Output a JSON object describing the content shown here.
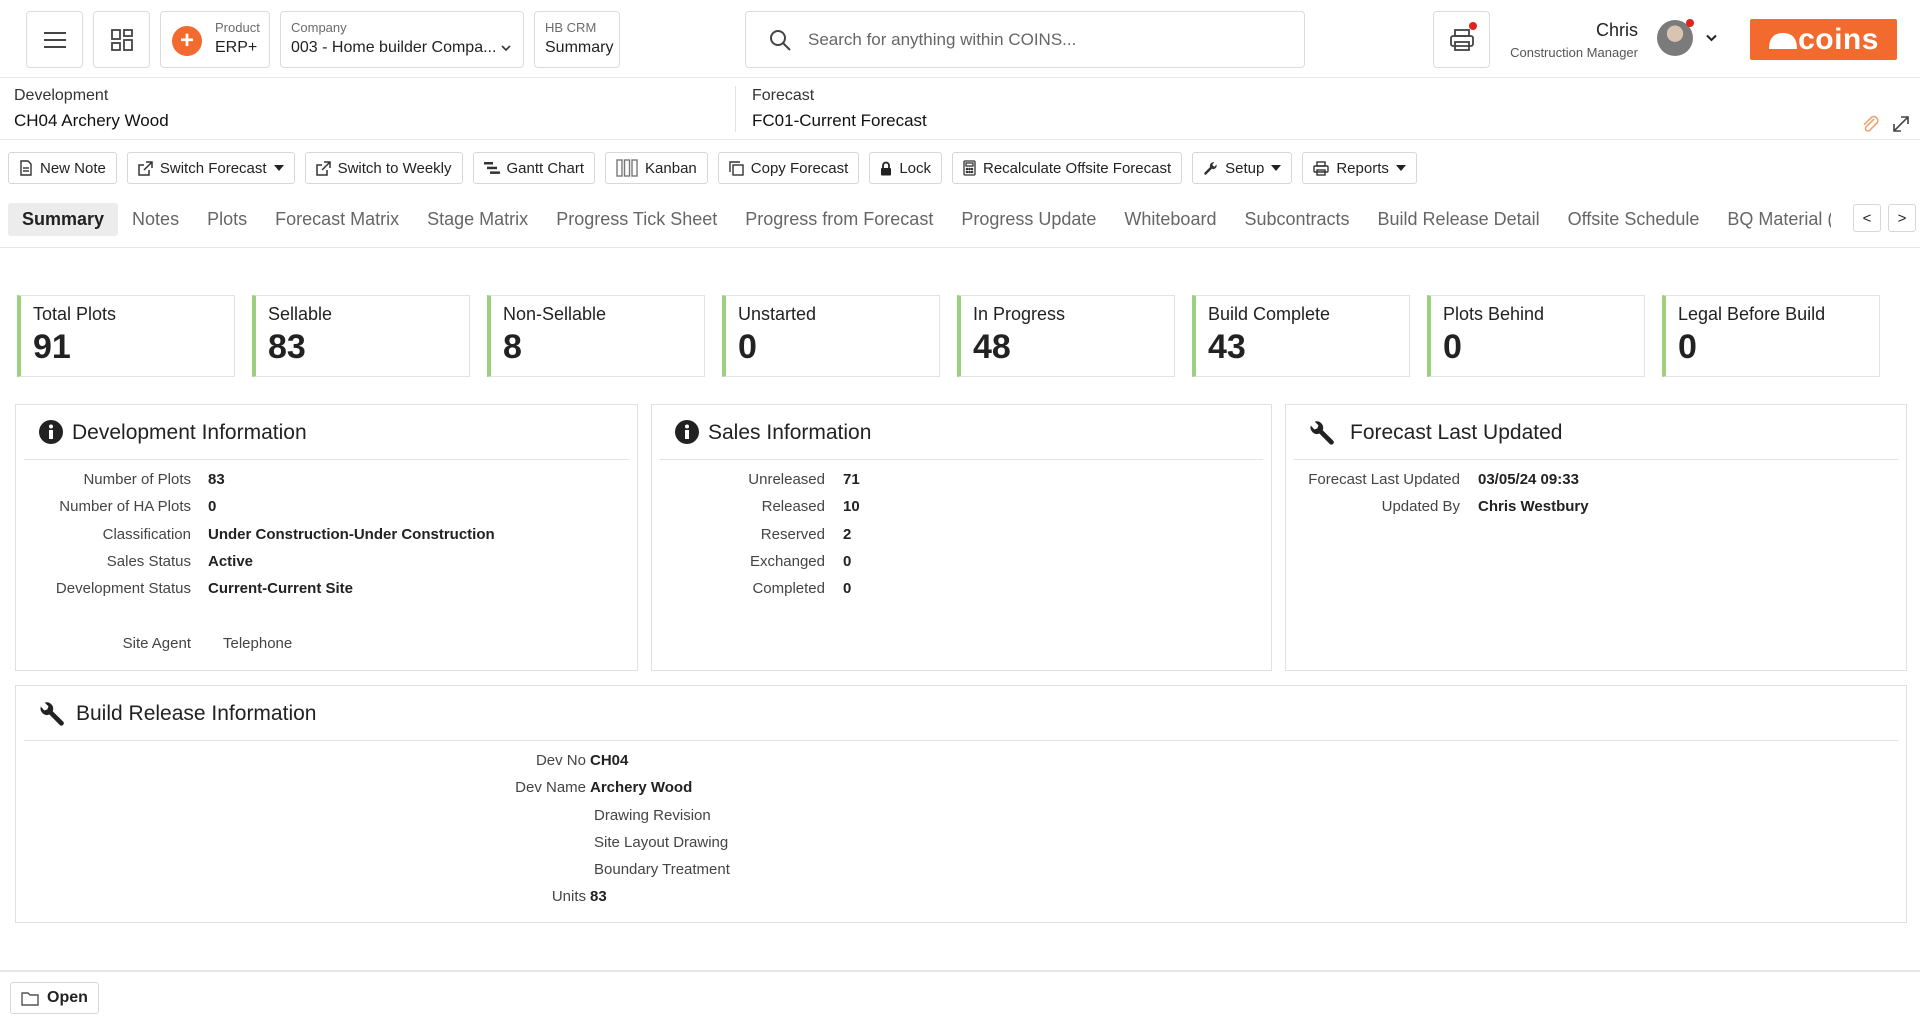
{
  "header": {
    "product_label": "Product",
    "product_value": "ERP+",
    "company_label": "Company",
    "company_value": "003 - Home builder Compa...",
    "crm_label": "HB CRM",
    "crm_value": "Summary",
    "search_placeholder": "Search for anything within COINS...",
    "user_name": "Chris",
    "user_role": "Construction Manager",
    "logo_text": "coins",
    "accent_color": "#f26a2e"
  },
  "context": {
    "development_label": "Development",
    "development_value": "CH04 Archery Wood",
    "forecast_label": "Forecast",
    "forecast_value": "FC01-Current Forecast"
  },
  "toolbar": {
    "new_note": "New Note",
    "switch_forecast": "Switch Forecast",
    "switch_weekly": "Switch to Weekly",
    "gantt": "Gantt Chart",
    "kanban": "Kanban",
    "copy_forecast": "Copy Forecast",
    "lock": "Lock",
    "recalculate": "Recalculate Offsite Forecast",
    "setup": "Setup",
    "reports": "Reports"
  },
  "tabs": [
    "Summary",
    "Notes",
    "Plots",
    "Forecast Matrix",
    "Stage Matrix",
    "Progress Tick Sheet",
    "Progress from Forecast",
    "Progress Update",
    "Whiteboard",
    "Subcontracts",
    "Build Release Detail",
    "Offsite Schedule",
    "BQ Material ("
  ],
  "tab_nav": {
    "prev": "<",
    "next": ">"
  },
  "stats": [
    {
      "label": "Total Plots",
      "value": "91"
    },
    {
      "label": "Sellable",
      "value": "83"
    },
    {
      "label": "Non-Sellable",
      "value": "8"
    },
    {
      "label": "Unstarted",
      "value": "0"
    },
    {
      "label": "In Progress",
      "value": "48"
    },
    {
      "label": "Build Complete",
      "value": "43"
    },
    {
      "label": "Plots Behind",
      "value": "0"
    },
    {
      "label": "Legal Before Build",
      "value": "0"
    }
  ],
  "stat_accent": "#9ccf7f",
  "development_info": {
    "title": "Development Information",
    "rows": [
      {
        "k": "Number of Plots",
        "v": "83"
      },
      {
        "k": "Number of HA Plots",
        "v": "0"
      },
      {
        "k": "Classification",
        "v": "Under Construction-Under Construction"
      },
      {
        "k": "Sales Status",
        "v": "Active"
      },
      {
        "k": "Development Status",
        "v": "Current-Current Site"
      }
    ],
    "site_agent_label": "Site Agent",
    "telephone_label": "Telephone"
  },
  "sales_info": {
    "title": "Sales Information",
    "rows": [
      {
        "k": "Unreleased",
        "v": "71"
      },
      {
        "k": "Released",
        "v": "10"
      },
      {
        "k": "Reserved",
        "v": "2"
      },
      {
        "k": "Exchanged",
        "v": "0"
      },
      {
        "k": "Completed",
        "v": "0"
      }
    ]
  },
  "forecast_updated": {
    "title": "Forecast Last Updated",
    "rows": [
      {
        "k": "Forecast Last Updated",
        "v": "03/05/24 09:33"
      },
      {
        "k": "Updated By",
        "v": "Chris Westbury"
      }
    ]
  },
  "build_release": {
    "title": "Build Release Information",
    "dev_no_label": "Dev No",
    "dev_no": "CH04",
    "dev_name_label": "Dev Name",
    "dev_name": "Archery Wood",
    "drawing_revision": "Drawing Revision",
    "site_layout": "Site Layout Drawing",
    "boundary": "Boundary Treatment",
    "units_label": "Units",
    "units": "83"
  },
  "bottom": {
    "open": "Open"
  }
}
